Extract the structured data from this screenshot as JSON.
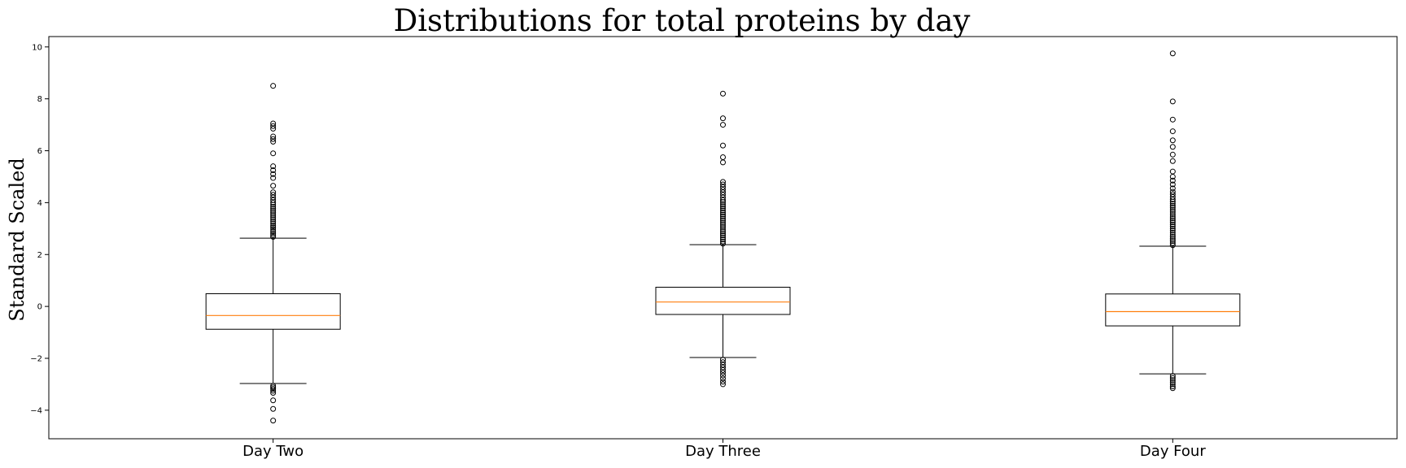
{
  "chart_data": {
    "type": "box",
    "title": "Distributions for total proteins by day",
    "xlabel": "",
    "ylabel": "Standard Scaled",
    "ylim": [
      -5.1,
      10.4
    ],
    "yticks": [
      -4,
      -2,
      0,
      2,
      4,
      6,
      8,
      10
    ],
    "ytick_labels": [
      "−4",
      "−2",
      "0",
      "2",
      "4",
      "6",
      "8",
      "10"
    ],
    "grid": false,
    "colors": {
      "box": "#000000",
      "median": "#ff7f0e",
      "flier": "#000000"
    },
    "categories": [
      "Day Two",
      "Day Three",
      "Day Four"
    ],
    "boxes": [
      {
        "category": "Day Two",
        "whisker_low": -2.97,
        "q1": -0.88,
        "median": -0.35,
        "q3": 0.49,
        "whisker_high": 2.63,
        "outliers": [
          -4.4,
          -3.95,
          -3.62,
          -3.33,
          -3.25,
          -3.18,
          -3.12,
          -3.06,
          2.68,
          2.75,
          2.82,
          2.9,
          2.98,
          3.05,
          3.12,
          3.2,
          3.28,
          3.36,
          3.44,
          3.52,
          3.6,
          3.68,
          3.76,
          3.84,
          3.92,
          4.0,
          4.1,
          4.2,
          4.3,
          4.4,
          4.65,
          4.95,
          5.1,
          5.25,
          5.4,
          5.9,
          6.35,
          6.45,
          6.55,
          6.85,
          6.95,
          7.05,
          8.5
        ]
      },
      {
        "category": "Day Three",
        "whisker_low": -1.97,
        "q1": -0.31,
        "median": 0.17,
        "q3": 0.74,
        "whisker_high": 2.38,
        "outliers": [
          -3.0,
          -2.9,
          -2.78,
          -2.66,
          -2.55,
          -2.45,
          -2.35,
          -2.25,
          -2.15,
          -2.05,
          2.42,
          2.5,
          2.58,
          2.66,
          2.74,
          2.82,
          2.9,
          2.98,
          3.06,
          3.14,
          3.22,
          3.3,
          3.38,
          3.46,
          3.54,
          3.62,
          3.7,
          3.78,
          3.86,
          3.94,
          4.02,
          4.1,
          4.2,
          4.3,
          4.4,
          4.5,
          4.6,
          4.7,
          4.8,
          5.55,
          5.75,
          6.2,
          7.0,
          7.25,
          8.2
        ]
      },
      {
        "category": "Day Four",
        "whisker_low": -2.6,
        "q1": -0.75,
        "median": -0.2,
        "q3": 0.48,
        "whisker_high": 2.32,
        "outliers": [
          -3.15,
          -3.08,
          -3.0,
          -2.92,
          -2.84,
          -2.76,
          -2.68,
          2.36,
          2.44,
          2.52,
          2.6,
          2.68,
          2.76,
          2.84,
          2.92,
          3.0,
          3.08,
          3.16,
          3.24,
          3.32,
          3.4,
          3.48,
          3.56,
          3.64,
          3.72,
          3.8,
          3.88,
          3.96,
          4.04,
          4.12,
          4.22,
          4.32,
          4.42,
          4.55,
          4.7,
          4.85,
          5.0,
          5.2,
          5.6,
          5.85,
          6.15,
          6.4,
          6.75,
          7.2,
          7.9,
          9.75
        ]
      }
    ]
  }
}
